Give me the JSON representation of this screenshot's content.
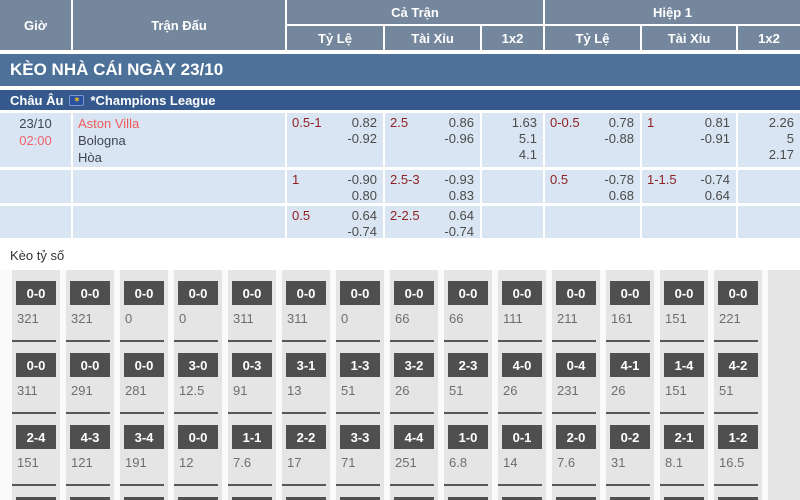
{
  "colors": {
    "header_bg": "#75879d",
    "banner_bg": "#4d7199",
    "league_bg": "#35598c",
    "row_bg": "#d9e5f2",
    "handicap_red": "#8f2222",
    "accent_red": "#f0646c",
    "score_box_bg": "#4f4f4f",
    "strip_bg": "#e5e5e5"
  },
  "table_header": {
    "time": "Giờ",
    "match": "Trận Đấu",
    "full_match": "Cả Trận",
    "first_half": "Hiệp 1",
    "sub_handicap": "Tỷ Lệ",
    "sub_ou": "Tài Xỉu",
    "sub_1x2": "1x2"
  },
  "banner": {
    "title": "KÈO NHÀ CÁI NGÀY 23/10"
  },
  "league": {
    "region": "Châu Âu",
    "flag_icon": "eu-flag-icon",
    "name": "*Champions League"
  },
  "match": {
    "date": "23/10",
    "time": "02:00",
    "home": "Aston Villa",
    "away": "Bologna",
    "draw": "Hòa"
  },
  "odds_rows": [
    {
      "ft_handicap": {
        "line": "0.5-1",
        "odds": [
          "0.82",
          "-0.92"
        ]
      },
      "ft_ou": {
        "line": "2.5",
        "odds": [
          "0.86",
          "-0.96"
        ]
      },
      "ft_1x2": [
        "1.63",
        "5.1",
        "4.1"
      ],
      "fh_handicap": {
        "line": "0-0.5",
        "odds": [
          "0.78",
          "-0.88"
        ]
      },
      "fh_ou": {
        "line": "1",
        "odds": [
          "0.81",
          "-0.91"
        ]
      },
      "fh_1x2": [
        "2.26",
        "5",
        "2.17"
      ]
    },
    {
      "ft_handicap": {
        "line": "1",
        "odds": [
          "-0.90",
          "0.80"
        ]
      },
      "ft_ou": {
        "line": "2.5-3",
        "odds": [
          "-0.93",
          "0.83"
        ]
      },
      "ft_1x2": [],
      "fh_handicap": {
        "line": "0.5",
        "odds": [
          "-0.78",
          "0.68"
        ]
      },
      "fh_ou": {
        "line": "1-1.5",
        "odds": [
          "-0.74",
          "0.64"
        ]
      },
      "fh_1x2": []
    },
    {
      "ft_handicap": {
        "line": "0.5",
        "odds": [
          "0.64",
          "-0.74"
        ]
      },
      "ft_ou": {
        "line": "2-2.5",
        "odds": [
          "0.64",
          "-0.74"
        ]
      },
      "ft_1x2": [],
      "fh_handicap": {
        "line": "",
        "odds": []
      },
      "fh_ou": {
        "line": "",
        "odds": []
      },
      "fh_1x2": []
    }
  ],
  "correct_score": {
    "title": "Kèo tỷ số",
    "rows": [
      {
        "cells": [
          {
            "score": "0-0",
            "odds": "321"
          },
          {
            "score": "0-0",
            "odds": "321"
          },
          {
            "score": "0-0",
            "odds": "0"
          },
          {
            "score": "0-0",
            "odds": "0"
          },
          {
            "score": "0-0",
            "odds": "311"
          },
          {
            "score": "0-0",
            "odds": "311"
          },
          {
            "score": "0-0",
            "odds": "0"
          },
          {
            "score": "0-0",
            "odds": "66"
          },
          {
            "score": "0-0",
            "odds": "66"
          },
          {
            "score": "0-0",
            "odds": "111"
          },
          {
            "score": "0-0",
            "odds": "211"
          },
          {
            "score": "0-0",
            "odds": "161"
          },
          {
            "score": "0-0",
            "odds": "151"
          },
          {
            "score": "0-0",
            "odds": "221"
          }
        ]
      },
      {
        "cells": [
          {
            "score": "0-0",
            "odds": "311"
          },
          {
            "score": "0-0",
            "odds": "291"
          },
          {
            "score": "0-0",
            "odds": "281"
          },
          {
            "score": "3-0",
            "odds": "12.5"
          },
          {
            "score": "0-3",
            "odds": "91"
          },
          {
            "score": "3-1",
            "odds": "13"
          },
          {
            "score": "1-3",
            "odds": "51"
          },
          {
            "score": "3-2",
            "odds": "26"
          },
          {
            "score": "2-3",
            "odds": "51"
          },
          {
            "score": "4-0",
            "odds": "26"
          },
          {
            "score": "0-4",
            "odds": "231"
          },
          {
            "score": "4-1",
            "odds": "26"
          },
          {
            "score": "1-4",
            "odds": "151"
          },
          {
            "score": "4-2",
            "odds": "51"
          }
        ]
      },
      {
        "cells": [
          {
            "score": "2-4",
            "odds": "151"
          },
          {
            "score": "4-3",
            "odds": "121"
          },
          {
            "score": "3-4",
            "odds": "191"
          },
          {
            "score": "0-0",
            "odds": "12"
          },
          {
            "score": "1-1",
            "odds": "7.6"
          },
          {
            "score": "2-2",
            "odds": "17"
          },
          {
            "score": "3-3",
            "odds": "71"
          },
          {
            "score": "4-4",
            "odds": "251"
          },
          {
            "score": "1-0",
            "odds": "6.8"
          },
          {
            "score": "0-1",
            "odds": "14"
          },
          {
            "score": "2-0",
            "odds": "7.6"
          },
          {
            "score": "0-2",
            "odds": "31"
          },
          {
            "score": "2-1",
            "odds": "8.1"
          },
          {
            "score": "1-2",
            "odds": "16.5"
          }
        ]
      }
    ]
  }
}
